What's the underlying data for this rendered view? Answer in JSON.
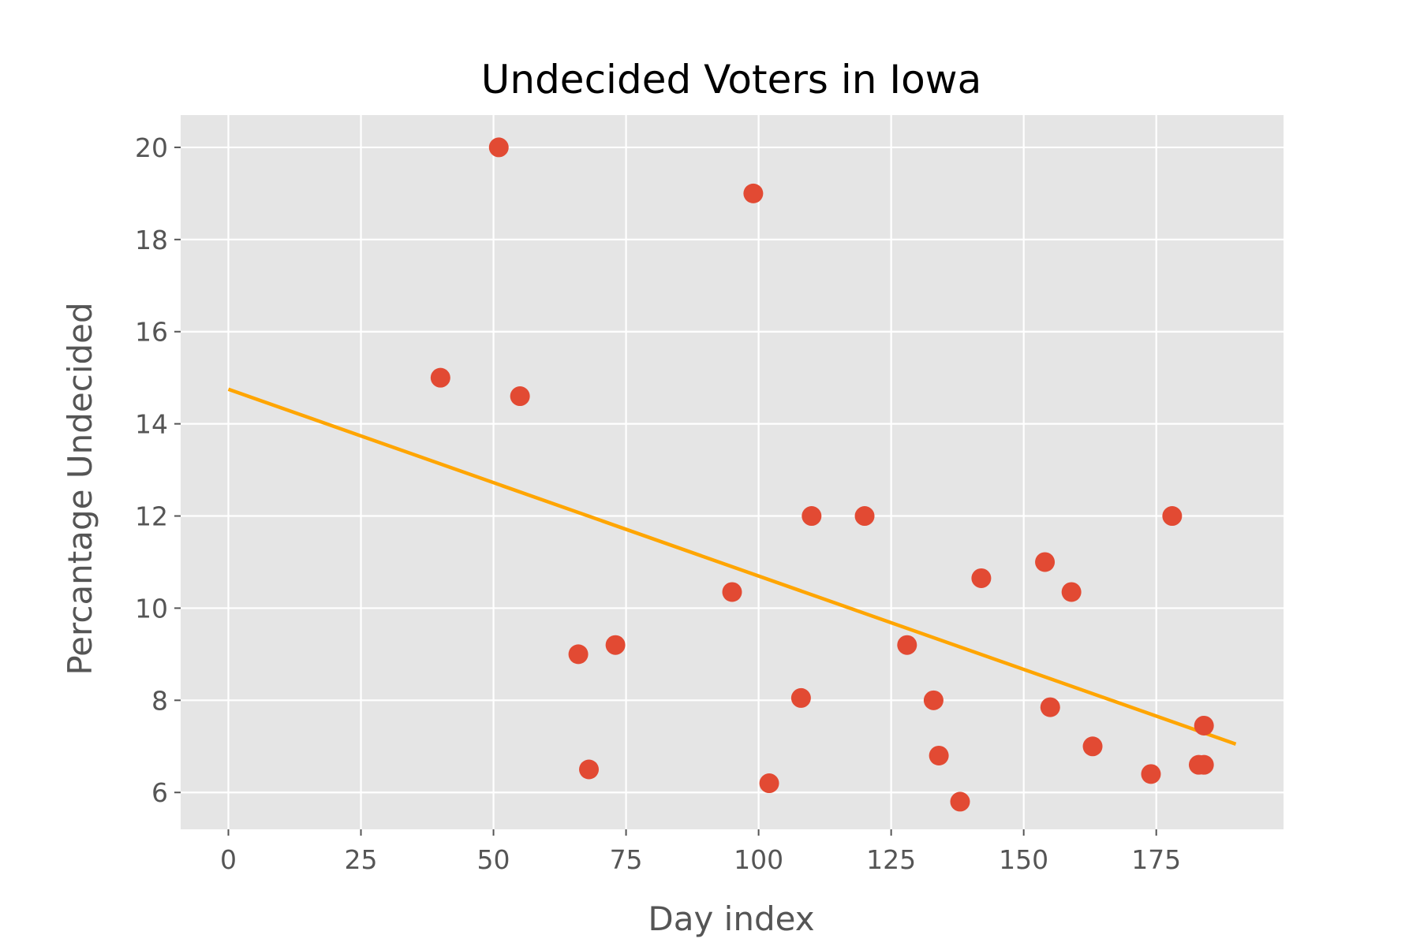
{
  "chart_data": {
    "type": "scatter",
    "title": "Undecided Voters in Iowa",
    "xlabel": "Day index",
    "ylabel": "Percantage Undecided",
    "xlim": [
      -9,
      199
    ],
    "ylim": [
      5.2,
      20.7
    ],
    "xticks": [
      0,
      25,
      50,
      75,
      100,
      125,
      150,
      175
    ],
    "xtick_labels": [
      "0",
      "25",
      "50",
      "75",
      "100",
      "125",
      "150",
      "175"
    ],
    "yticks": [
      6,
      8,
      10,
      12,
      14,
      16,
      18,
      20
    ],
    "ytick_labels": [
      "6",
      "8",
      "10",
      "12",
      "14",
      "16",
      "18",
      "20"
    ],
    "grid": true,
    "style": "ggplot",
    "colors": {
      "background": "#E5E5E5",
      "grid": "#FFFFFF",
      "points": "#E24A33",
      "trend": "#FFA500"
    },
    "series": [
      {
        "kind": "scatter",
        "points": [
          [
            40,
            15.0
          ],
          [
            51,
            20.0
          ],
          [
            55,
            14.6
          ],
          [
            66,
            9.0
          ],
          [
            68,
            6.5
          ],
          [
            73,
            9.2
          ],
          [
            95,
            10.35
          ],
          [
            99,
            19.0
          ],
          [
            102,
            6.2
          ],
          [
            108,
            8.05
          ],
          [
            110,
            12.0
          ],
          [
            120,
            12.0
          ],
          [
            128,
            9.2
          ],
          [
            133,
            8.0
          ],
          [
            134,
            6.8
          ],
          [
            138,
            5.8
          ],
          [
            142,
            10.65
          ],
          [
            154,
            11.0
          ],
          [
            155,
            7.85
          ],
          [
            159,
            10.35
          ],
          [
            163,
            7.0
          ],
          [
            174,
            6.4
          ],
          [
            178,
            12.0
          ],
          [
            183,
            6.6
          ],
          [
            184,
            7.45
          ],
          [
            184,
            6.6
          ]
        ]
      },
      {
        "kind": "line",
        "points": [
          [
            0,
            14.75
          ],
          [
            190,
            7.05
          ]
        ]
      }
    ]
  }
}
